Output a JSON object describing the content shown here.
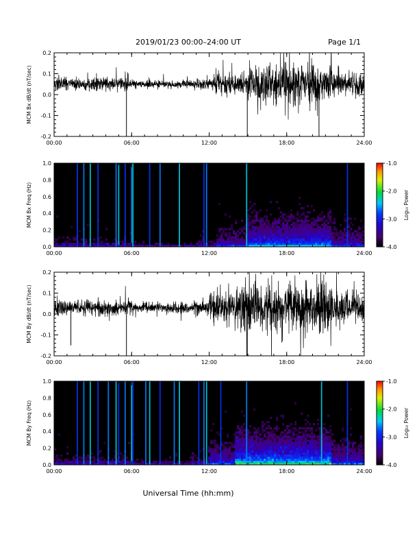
{
  "header": {
    "title": "2019/01/23  00:00–24:00 UT",
    "page": "Page 1/1"
  },
  "footer": {
    "xlabel": "Universal Time (hh:mm)"
  },
  "colorbar": {
    "label": "Log₁₀ Power",
    "ticks": [
      "-1.0",
      "-2.0",
      "-3.0",
      "-4.0"
    ],
    "range": [
      -4.0,
      -1.0
    ]
  },
  "chart_data": [
    {
      "type": "line",
      "id": "bx-dbdt",
      "ylabel": "MCM Bx dB/dt (nT/sec)",
      "ylim": [
        -0.2,
        0.2
      ],
      "yticks": [
        "0.2",
        "0.1",
        "0.0",
        "-0.1",
        "-0.2"
      ],
      "xticks": [
        "00:00",
        "06:00",
        "12:00",
        "18:00",
        "24:00"
      ],
      "xlim": [
        0,
        24
      ],
      "baseline": 0.05,
      "activity_profile": [
        {
          "hours": [
            0,
            6
          ],
          "amplitude": 0.05
        },
        {
          "hours": [
            6,
            11
          ],
          "amplitude": 0.03
        },
        {
          "hours": [
            11,
            12.5
          ],
          "amplitude": 0.05
        },
        {
          "hours": [
            12.5,
            15
          ],
          "amplitude": 0.09
        },
        {
          "hours": [
            15,
            21.5
          ],
          "amplitude": 0.16
        },
        {
          "hours": [
            21.5,
            24
          ],
          "amplitude": 0.1
        }
      ],
      "spikes": [
        {
          "hour": 5.6,
          "value": -0.2
        },
        {
          "hour": 14.95,
          "value": -0.2
        },
        {
          "hour": 20.5,
          "value": -0.2
        }
      ]
    },
    {
      "type": "heatmap",
      "id": "bx-spectrogram",
      "ylabel": "MCM Bx Freq (Hz)",
      "ylim": [
        0.0,
        1.0
      ],
      "yticks": [
        "1.0",
        "0.8",
        "0.6",
        "0.4",
        "0.2",
        "0.0"
      ],
      "xticks": [
        "00:00",
        "06:00",
        "12:00",
        "18:00",
        "24:00"
      ],
      "xlim": [
        0,
        24
      ],
      "clim": [
        -4.0,
        -1.0
      ],
      "vertical_streak_hours": [
        1.8,
        2.3,
        2.8,
        3.4,
        4.8,
        5.0,
        5.5,
        6.0,
        6.1,
        7.4,
        8.2,
        9.7,
        11.6,
        11.8,
        14.9,
        22.7
      ]
    },
    {
      "type": "line",
      "id": "by-dbdt",
      "ylabel": "MCM By dB/dt (nT/sec)",
      "ylim": [
        -0.2,
        0.2
      ],
      "yticks": [
        "0.2",
        "0.1",
        "0.0",
        "-0.1",
        "-0.2"
      ],
      "xticks": [
        "00:00",
        "06:00",
        "12:00",
        "18:00",
        "24:00"
      ],
      "xlim": [
        0,
        24
      ],
      "baseline": 0.03,
      "activity_profile": [
        {
          "hours": [
            0,
            6
          ],
          "amplitude": 0.06
        },
        {
          "hours": [
            6,
            10.5
          ],
          "amplitude": 0.04
        },
        {
          "hours": [
            10.5,
            12
          ],
          "amplitude": 0.06
        },
        {
          "hours": [
            12,
            14
          ],
          "amplitude": 0.12
        },
        {
          "hours": [
            14,
            21.5
          ],
          "amplitude": 0.2
        },
        {
          "hours": [
            21.5,
            24
          ],
          "amplitude": 0.12
        }
      ],
      "spikes": [
        {
          "hour": 1.3,
          "value": -0.15
        },
        {
          "hour": 5.6,
          "value": -0.2
        },
        {
          "hour": 14.95,
          "value": -0.2
        }
      ]
    },
    {
      "type": "heatmap",
      "id": "by-spectrogram",
      "ylabel": "MCM By Freq (Hz)",
      "ylim": [
        0.0,
        1.0
      ],
      "yticks": [
        "1.0",
        "0.8",
        "0.6",
        "0.4",
        "0.2",
        "0.0"
      ],
      "xticks": [
        "00:00",
        "06:00",
        "12:00",
        "18:00",
        "24:00"
      ],
      "xlim": [
        0,
        24
      ],
      "clim": [
        -4.0,
        -1.0
      ],
      "vertical_streak_hours": [
        1.8,
        2.3,
        2.8,
        3.4,
        4.2,
        4.8,
        5.0,
        5.5,
        6.0,
        6.1,
        7.1,
        7.4,
        8.2,
        9.3,
        9.7,
        11.2,
        11.6,
        11.8,
        12.9,
        14.9,
        20.7,
        22.7
      ]
    }
  ]
}
